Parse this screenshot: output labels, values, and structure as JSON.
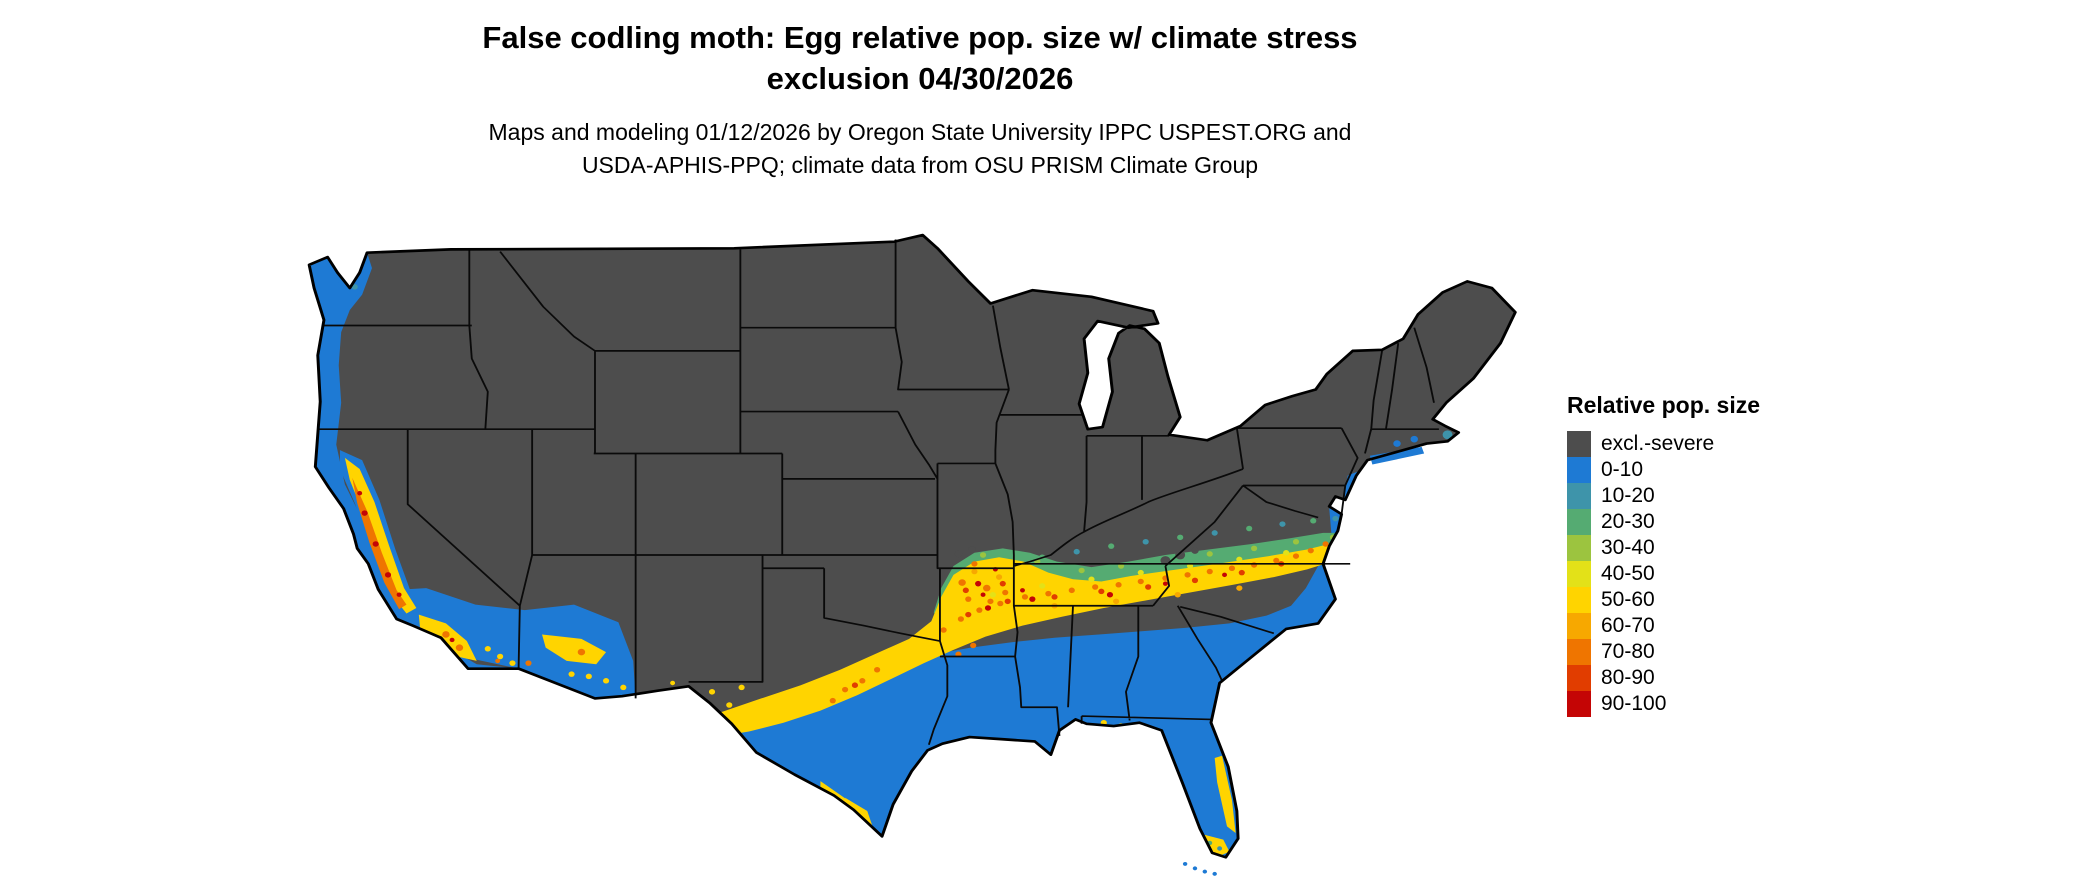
{
  "title": {
    "line1": "False codling moth: Egg relative pop. size w/ climate stress",
    "line2": "exclusion 04/30/2026"
  },
  "subtitle": {
    "line1": "Maps and modeling 01/12/2026 by Oregon State University IPPC USPEST.ORG and",
    "line2": "USDA-APHIS-PPQ; climate data from OSU PRISM Climate Group"
  },
  "legend": {
    "title": "Relative pop. size",
    "items": [
      {
        "label": "excl.-severe",
        "color": "#4D4D4D"
      },
      {
        "label": "0-10",
        "color": "#1E7AD4"
      },
      {
        "label": "10-20",
        "color": "#3E94AA"
      },
      {
        "label": "20-30",
        "color": "#55AB72"
      },
      {
        "label": "30-40",
        "color": "#9CC43F"
      },
      {
        "label": "40-50",
        "color": "#E3E118"
      },
      {
        "label": "50-60",
        "color": "#FFD400"
      },
      {
        "label": "60-70",
        "color": "#F7A800"
      },
      {
        "label": "70-80",
        "color": "#EF7500"
      },
      {
        "label": "80-90",
        "color": "#E13D00"
      },
      {
        "label": "90-100",
        "color": "#C40505"
      }
    ]
  }
}
